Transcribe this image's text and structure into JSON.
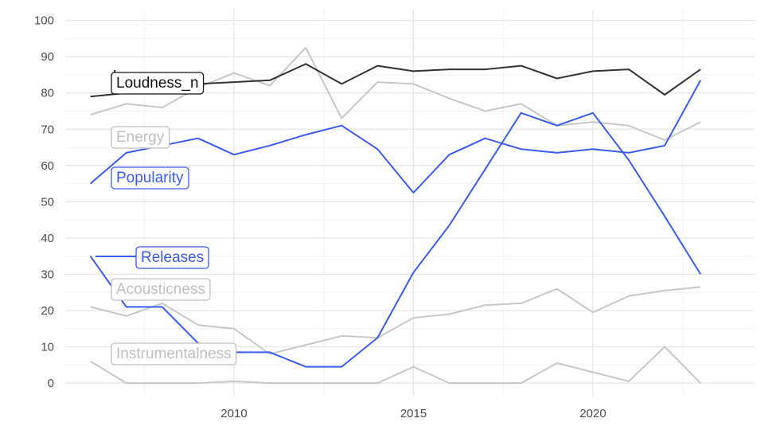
{
  "chart_data": {
    "type": "line",
    "title": "",
    "xlabel": "",
    "ylabel": "",
    "x": [
      2006,
      2007,
      2008,
      2009,
      2010,
      2011,
      2012,
      2013,
      2014,
      2015,
      2016,
      2017,
      2018,
      2019,
      2020,
      2021,
      2022,
      2023
    ],
    "xlim": [
      2005.3,
      2024.5
    ],
    "ylim": [
      -3.5,
      103
    ],
    "x_ticks": [
      2010,
      2015,
      2020
    ],
    "y_ticks": [
      0,
      10,
      20,
      30,
      40,
      50,
      60,
      70,
      80,
      90,
      100
    ],
    "grid": true,
    "legend": "direct labels",
    "series": [
      {
        "name": "Loudness_n",
        "color": "#333333",
        "label_color": "#111111",
        "values": [
          79,
          80,
          81.5,
          82.5,
          83,
          83.5,
          88,
          82.5,
          87.5,
          86,
          86.5,
          86.5,
          87.5,
          84,
          86,
          86.5,
          79.5,
          86.5
        ]
      },
      {
        "name": "Energy",
        "color": "#c8c8c8",
        "label_color": "#c0c0c0",
        "values": [
          74,
          77,
          76,
          81.5,
          85.5,
          82,
          92.5,
          73,
          83,
          82.5,
          78.5,
          75,
          77,
          71,
          72,
          71,
          67,
          72
        ]
      },
      {
        "name": "Popularity",
        "color": "#3b5bf0",
        "label_color": "#3b5bf0",
        "values": [
          55,
          63.5,
          65.5,
          67.5,
          63,
          65.5,
          68.5,
          71,
          64.5,
          52.5,
          63,
          67.5,
          64.5,
          63.5,
          64.5,
          63.5,
          65.5,
          83.5
        ]
      },
      {
        "name": "Releases",
        "color": "#3b5bf0",
        "label_color": "#3b5bf0",
        "values": [
          35,
          21,
          21,
          11,
          8.5,
          8.5,
          4.5,
          4.5,
          12.5,
          30.5,
          43.5,
          59,
          74.5,
          71,
          74.5,
          61.5,
          46,
          30
        ]
      },
      {
        "name": "Acousticness",
        "color": "#c8c8c8",
        "label_color": "#c0c0c0",
        "values": [
          21,
          18.5,
          22,
          16,
          15,
          8,
          10.5,
          13,
          12.5,
          18,
          19,
          21.5,
          22,
          26,
          19.5,
          24,
          25.5,
          26.5
        ]
      },
      {
        "name": "Instrumentalness",
        "color": "#c8c8c8",
        "label_color": "#c0c0c0",
        "values": [
          6,
          0,
          0,
          0,
          0.5,
          0,
          0,
          0,
          0,
          4.5,
          0,
          0,
          0,
          5.5,
          3,
          0.5,
          10,
          0
        ]
      }
    ]
  }
}
